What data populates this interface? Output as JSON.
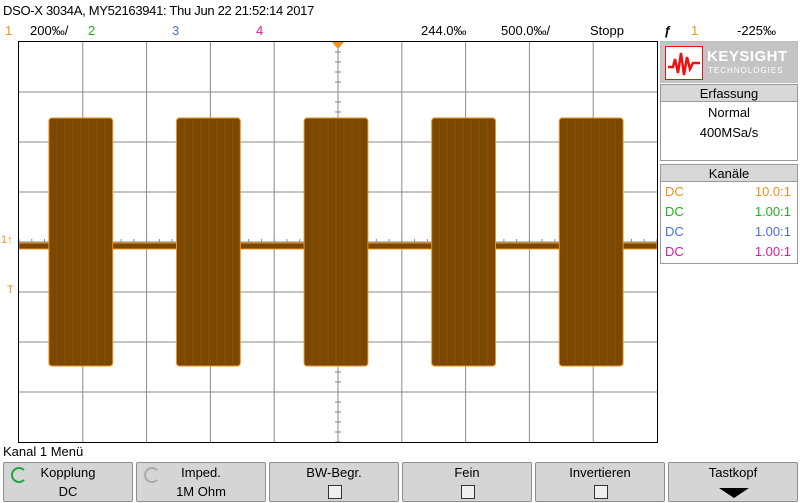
{
  "title": "DSO-X 3034A, MY52163941: Thu Jun 22 21:52:14 2017",
  "status": {
    "ch1_num": "1",
    "ch1_scale": "200‰/",
    "ch2_num": "2",
    "ch3_num": "3",
    "ch4_num": "4",
    "time_offset": "244.0‰",
    "time_scale": "500.0‰/",
    "run_state": "Stopp",
    "trigger_icon": "ƒ",
    "trigger_source": "1",
    "trigger_level": "-225‰"
  },
  "colors": {
    "ch1": "#f09020",
    "ch2": "#21b221",
    "ch3": "#4b6fe0",
    "ch4": "#d81b9c",
    "waveform_fill": "#7a4800",
    "waveform_edge": "#f09020"
  },
  "markers": {
    "ch1_ground": "1↑",
    "trigger_level": "T"
  },
  "logo": {
    "word": "KEYSIGHT",
    "sub": "TECHNOLOGIES"
  },
  "acquisition": {
    "header": "Erfassung",
    "mode": "Normal",
    "sample_rate": "400MSa/s"
  },
  "channels": {
    "header": "Kanäle",
    "rows": [
      {
        "coupling": "DC",
        "probe": "10.0:1",
        "color": "#f09020"
      },
      {
        "coupling": "DC",
        "probe": "1.00:1",
        "color": "#21b221"
      },
      {
        "coupling": "DC",
        "probe": "1.00:1",
        "color": "#4b6fe0"
      },
      {
        "coupling": "DC",
        "probe": "1.00:1",
        "color": "#d81b9c"
      }
    ]
  },
  "menu_title": "Kanal 1 Menü",
  "softkeys": [
    {
      "label": "Kopplung",
      "value": "DC",
      "icon": "rotate-icon"
    },
    {
      "label": "Imped.",
      "value": "1M Ohm",
      "icon": "rotate-icon"
    },
    {
      "label": "BW-Begr.",
      "value": "",
      "icon": "checkbox-icon"
    },
    {
      "label": "Fein",
      "value": "",
      "icon": "checkbox-icon"
    },
    {
      "label": "Invertieren",
      "value": "",
      "icon": "checkbox-icon"
    },
    {
      "label": "Tastkopf",
      "value": "",
      "icon": "down-arrow-icon"
    }
  ],
  "waveform": {
    "bursts": 5,
    "description_type": "burst"
  }
}
